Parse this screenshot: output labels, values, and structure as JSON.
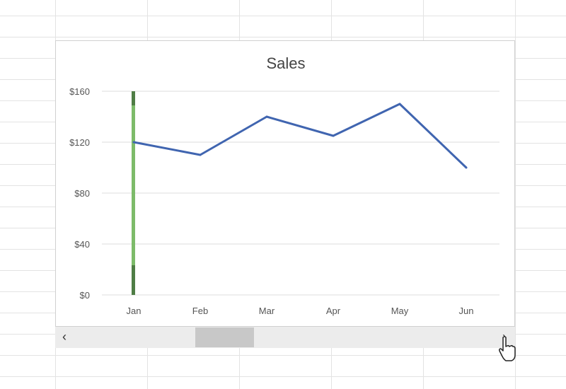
{
  "chart_data": {
    "type": "line",
    "title": "Sales",
    "categories": [
      "Jan",
      "Feb",
      "Mar",
      "Apr",
      "May",
      "Jun"
    ],
    "series": [
      {
        "values": [
          120,
          110,
          140,
          125,
          150,
          100
        ],
        "color": "#4065b0"
      }
    ],
    "ylim": [
      0,
      160
    ],
    "yticks": [
      0,
      40,
      80,
      120,
      160
    ],
    "ytick_labels": [
      "$0",
      "$40",
      "$80",
      "$120",
      "$160"
    ],
    "grid": true,
    "highlight_category": "Jan",
    "highlight_color": "#7dbb6a"
  },
  "scrollbar": {
    "left_icon": "chevron-left-icon",
    "right_icon": "chevron-right-icon",
    "left": "‹",
    "right": "›",
    "position": 0.25
  },
  "cursor_icon": "hand-pointer-icon"
}
